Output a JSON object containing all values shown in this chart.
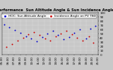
{
  "title": "Solar PV/Inverter Performance  Sun Altitude Angle & Sun Incidence Angle on PV Panels",
  "legend_labels": [
    "HOC: Sun Altitude Angle",
    "Incidence Angle on PV TBD"
  ],
  "legend_colors": [
    "#0000cc",
    "#cc0000"
  ],
  "bg_color": "#c8c8c8",
  "plot_bg": "#c8c8c8",
  "grid_color": "#ffffff",
  "ylim": [
    0,
    100
  ],
  "ylabel_vals": [
    0,
    10,
    20,
    30,
    40,
    50,
    60,
    70,
    80,
    90,
    100
  ],
  "blue_x": [
    0.02,
    0.07,
    0.13,
    0.19,
    0.25,
    0.3,
    0.36,
    0.42,
    0.47,
    0.53,
    0.58,
    0.64,
    0.7,
    0.75,
    0.81,
    0.87,
    0.92,
    0.97
  ],
  "blue_y": [
    72,
    65,
    58,
    52,
    44,
    38,
    32,
    42,
    50,
    56,
    46,
    36,
    42,
    52,
    60,
    38,
    62,
    68
  ],
  "red_x": [
    0.04,
    0.1,
    0.16,
    0.22,
    0.27,
    0.33,
    0.39,
    0.45,
    0.5,
    0.56,
    0.61,
    0.67,
    0.73,
    0.78,
    0.84,
    0.9,
    0.95
  ],
  "red_y": [
    18,
    25,
    33,
    40,
    48,
    53,
    46,
    38,
    33,
    43,
    50,
    56,
    48,
    40,
    33,
    43,
    28
  ],
  "xticklabels": [
    "05:00",
    "06:00",
    "07:00",
    "08:00",
    "09:00",
    "10:00",
    "11:00",
    "12:00",
    "13:00",
    "14:00",
    "15:00",
    "16:00",
    "17:00",
    "18:00",
    "19:00",
    "20:00",
    "21:00"
  ],
  "dot_size": 2,
  "title_fontsize": 3.8,
  "tick_fontsize": 3.0,
  "legend_fontsize": 3.2
}
